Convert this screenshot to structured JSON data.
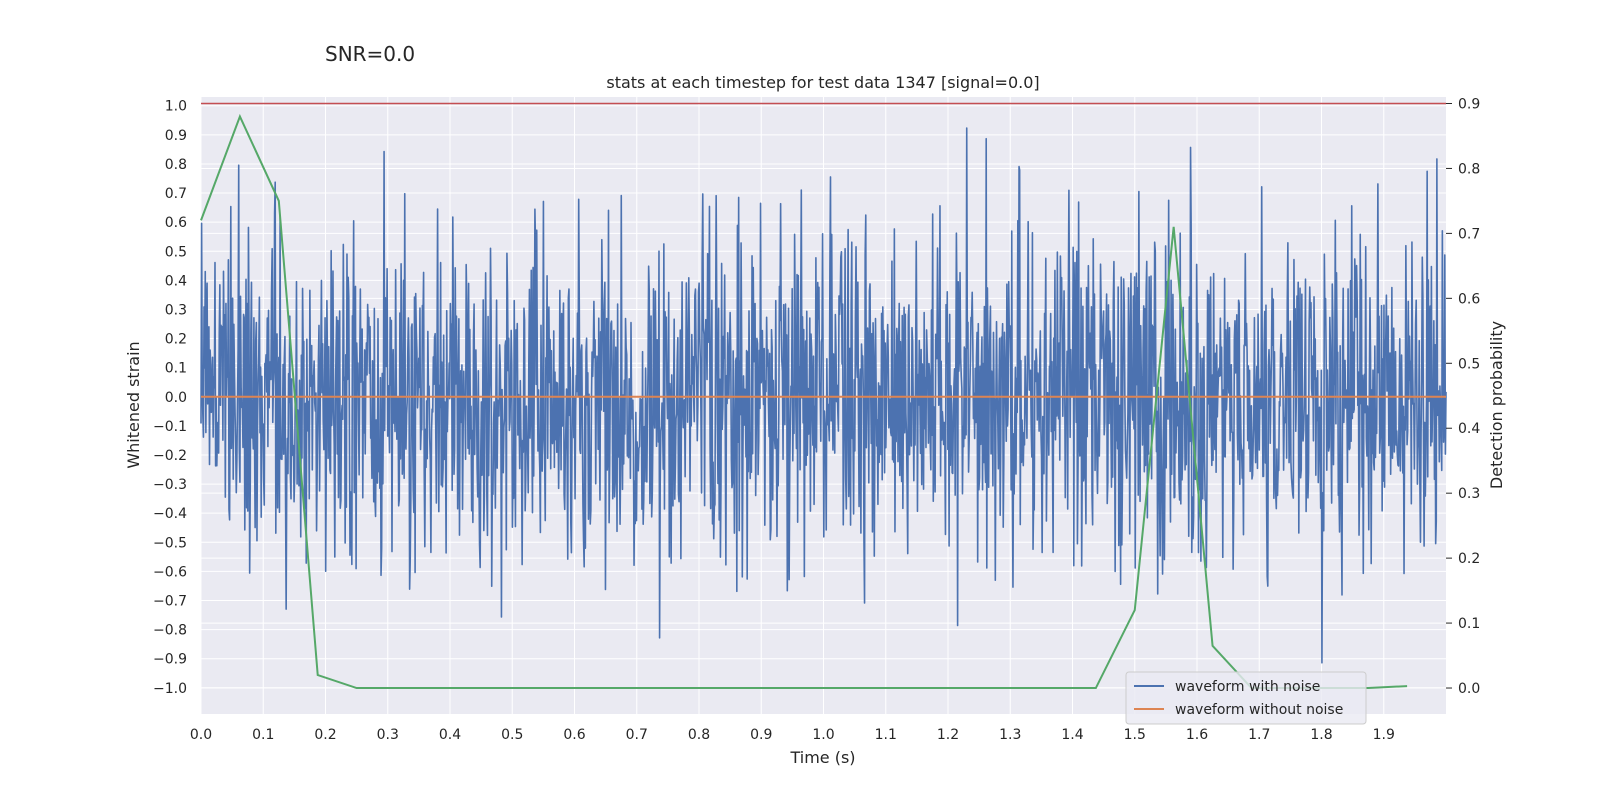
{
  "suptitle": "SNR=0.0",
  "chart_data": {
    "type": "line",
    "title": "stats at each timestep for test data 1347 [signal=0.0]",
    "xlabel": "Time (s)",
    "ylabel": "Whitened strain",
    "y2label": "Detection probability",
    "xlim": [
      0.0,
      2.0
    ],
    "ylim": [
      -1.09,
      1.03
    ],
    "y2lim": [
      -0.04,
      0.91
    ],
    "xticks": [
      0.0,
      0.1,
      0.2,
      0.3,
      0.4,
      0.5,
      0.6,
      0.7,
      0.8,
      0.9,
      1.0,
      1.1,
      1.2,
      1.3,
      1.4,
      1.5,
      1.6,
      1.7,
      1.8,
      1.9
    ],
    "xtick_labels": [
      "0.0",
      "0.1",
      "0.2",
      "0.3",
      "0.4",
      "0.5",
      "0.6",
      "0.7",
      "0.8",
      "0.9",
      "1.0",
      "1.1",
      "1.2",
      "1.3",
      "1.4",
      "1.5",
      "1.6",
      "1.7",
      "1.8",
      "1.9"
    ],
    "yticks": [
      1.0,
      0.9,
      0.8,
      0.7,
      0.6,
      0.5,
      0.4,
      0.3,
      0.2,
      0.1,
      0.0,
      -0.1,
      -0.2,
      -0.3,
      -0.4,
      -0.5,
      -0.6,
      -0.7,
      -0.8,
      -0.9,
      -1.0
    ],
    "ytick_labels": [
      "1.0",
      "0.9",
      "0.8",
      "0.7",
      "0.6",
      "0.5",
      "0.4",
      "0.3",
      "0.2",
      "0.1",
      "0.0",
      "−0.1",
      "−0.2",
      "−0.3",
      "−0.4",
      "−0.5",
      "−0.6",
      "−0.7",
      "−0.8",
      "−0.9",
      "−1.0"
    ],
    "y2ticks": [
      0.9,
      0.8,
      0.7,
      0.6,
      0.5,
      0.4,
      0.3,
      0.2,
      0.1,
      0.0
    ],
    "y2tick_labels": [
      "0.9",
      "0.8",
      "0.7",
      "0.6",
      "0.5",
      "0.4",
      "0.3",
      "0.2",
      "0.1",
      "0.0"
    ],
    "threshold": {
      "value": 0.9,
      "axis": "right",
      "color": "#c44e52"
    },
    "series": [
      {
        "name": "waveform with noise",
        "axis": "left",
        "color": "#4c72b0",
        "generated_noise": {
          "count": 2048,
          "seed": 1347,
          "std": 0.28,
          "clip": 0.95
        }
      },
      {
        "name": "waveform without noise",
        "axis": "left",
        "color": "#dd8452",
        "x": [
          0.0,
          2.0
        ],
        "y": [
          0.0,
          0.0
        ]
      },
      {
        "name": "detection probability",
        "axis": "right",
        "color": "#55a868",
        "x": [
          0.0,
          0.0625,
          0.125,
          0.1875,
          0.25,
          0.3125,
          0.375,
          0.4375,
          0.5,
          0.5625,
          0.625,
          0.6875,
          0.75,
          0.8125,
          0.875,
          0.9375,
          1.0,
          1.0625,
          1.125,
          1.1875,
          1.25,
          1.3125,
          1.375,
          1.4375,
          1.5,
          1.5625,
          1.625,
          1.6875,
          1.75,
          1.8125,
          1.875,
          1.9375
        ],
        "y": [
          0.72,
          0.88,
          0.75,
          0.02,
          0.0,
          0.0,
          0.0,
          0.0,
          0.0,
          0.0,
          0.0,
          0.0,
          0.0,
          0.0,
          0.0,
          0.0,
          0.0,
          0.0,
          0.0,
          0.0,
          0.0,
          0.0,
          0.0,
          0.0,
          0.12,
          0.71,
          0.065,
          0.0,
          0.0,
          0.0,
          0.0,
          0.003
        ]
      }
    ],
    "legend": {
      "placement": "lower-right",
      "entries": [
        {
          "label": "waveform with noise",
          "color": "#4c72b0"
        },
        {
          "label": "waveform without noise",
          "color": "#dd8452"
        }
      ]
    }
  }
}
